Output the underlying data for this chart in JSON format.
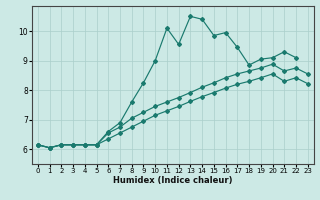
{
  "xlabel": "Humidex (Indice chaleur)",
  "background_color": "#cce9e5",
  "grid_color": "#aacfcb",
  "line_color": "#1a7a6e",
  "xlim": [
    -0.5,
    23.5
  ],
  "ylim": [
    5.5,
    10.85
  ],
  "xticks": [
    0,
    1,
    2,
    3,
    4,
    5,
    6,
    7,
    8,
    9,
    10,
    11,
    12,
    13,
    14,
    15,
    16,
    17,
    18,
    19,
    20,
    21,
    22,
    23
  ],
  "yticks": [
    6,
    7,
    8,
    9,
    10
  ],
  "series1_x": [
    0,
    1,
    2,
    3,
    4,
    5,
    6,
    7,
    8,
    9,
    10,
    11,
    12,
    13,
    14,
    15,
    16,
    17,
    18,
    19,
    20,
    21,
    22
  ],
  "series1_y": [
    6.15,
    6.05,
    6.15,
    6.15,
    6.15,
    6.15,
    6.6,
    6.9,
    7.6,
    8.25,
    9.0,
    10.1,
    9.55,
    10.5,
    10.4,
    9.85,
    9.95,
    9.45,
    8.85,
    9.05,
    9.1,
    9.3,
    9.1
  ],
  "series2_x": [
    0,
    1,
    2,
    3,
    4,
    5,
    6,
    7,
    8,
    9,
    10,
    11,
    12,
    13,
    14,
    15,
    16,
    17,
    18,
    19,
    20,
    21,
    22,
    23
  ],
  "series2_y": [
    6.15,
    6.05,
    6.15,
    6.15,
    6.15,
    6.15,
    6.55,
    6.75,
    7.05,
    7.25,
    7.45,
    7.6,
    7.75,
    7.92,
    8.1,
    8.25,
    8.42,
    8.55,
    8.65,
    8.75,
    8.88,
    8.65,
    8.75,
    8.55
  ],
  "series3_x": [
    0,
    1,
    2,
    3,
    4,
    5,
    6,
    7,
    8,
    9,
    10,
    11,
    12,
    13,
    14,
    15,
    16,
    17,
    18,
    19,
    20,
    21,
    22,
    23
  ],
  "series3_y": [
    6.15,
    6.05,
    6.15,
    6.15,
    6.15,
    6.15,
    6.35,
    6.55,
    6.75,
    6.95,
    7.15,
    7.3,
    7.45,
    7.62,
    7.78,
    7.92,
    8.07,
    8.2,
    8.3,
    8.42,
    8.55,
    8.3,
    8.42,
    8.22
  ]
}
